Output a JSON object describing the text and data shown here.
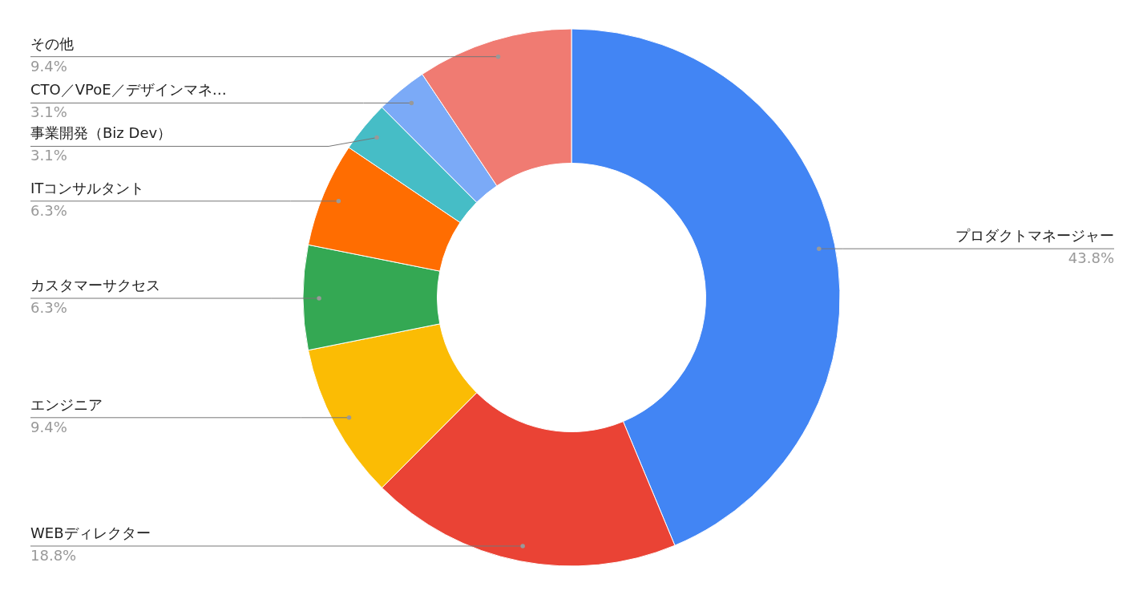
{
  "chart_data": {
    "type": "donut",
    "categories": [
      "プロダクトマネージャー",
      "WEBディレクター",
      "エンジニア",
      "カスタマーサクセス",
      "ITコンサルタント",
      "事業開発（Biz Dev）",
      "CTO／VPoE／デザインマネ…",
      "その他"
    ],
    "values": [
      43.8,
      18.8,
      9.4,
      6.3,
      6.3,
      3.1,
      3.1,
      9.4
    ],
    "value_labels": [
      "43.8%",
      "18.8%",
      "9.4%",
      "6.3%",
      "6.3%",
      "3.1%",
      "3.1%",
      "9.4%"
    ],
    "colors": [
      "#4285f4",
      "#ea4335",
      "#fbbc04",
      "#34a853",
      "#ff6d01",
      "#46bdc6",
      "#7baaf7",
      "#f07b72"
    ]
  }
}
